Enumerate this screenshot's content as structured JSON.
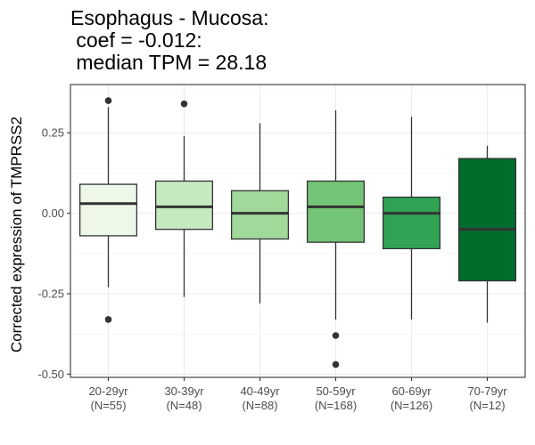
{
  "title_lines": [
    "Esophagus - Mucosa:",
    " coef = -0.012:",
    " median TPM = 28.18"
  ],
  "chart_data": {
    "type": "box",
    "title": "Esophagus - Mucosa:\n coef = -0.012:\n median TPM = 28.18",
    "xlabel": "",
    "ylabel": "Corrected expression of TMPRSS2",
    "ylim": [
      -0.51,
      0.4
    ],
    "yticks": [
      0.25,
      0.0,
      -0.25,
      -0.5
    ],
    "ytick_labels": [
      "0.25",
      "0.00",
      "-0.25",
      "-0.50"
    ],
    "grid": true,
    "categories": [
      {
        "label": "20-29yr",
        "n_label": "(N=55)"
      },
      {
        "label": "30-39yr",
        "n_label": "(N=48)"
      },
      {
        "label": "40-49yr",
        "n_label": "(N=88)"
      },
      {
        "label": "50-59yr",
        "n_label": "(N=168)"
      },
      {
        "label": "60-69yr",
        "n_label": "(N=126)"
      },
      {
        "label": "70-79yr",
        "n_label": "(N=12)"
      }
    ],
    "boxes": [
      {
        "whisker_low": -0.23,
        "q1": -0.07,
        "median": 0.03,
        "q3": 0.09,
        "whisker_high": 0.33,
        "outliers": [
          0.35,
          -0.33
        ],
        "color": "#edf8e9"
      },
      {
        "whisker_low": -0.26,
        "q1": -0.05,
        "median": 0.02,
        "q3": 0.1,
        "whisker_high": 0.24,
        "outliers": [
          0.34
        ],
        "color": "#c7e9c0"
      },
      {
        "whisker_low": -0.28,
        "q1": -0.08,
        "median": 0.0,
        "q3": 0.07,
        "whisker_high": 0.28,
        "outliers": [],
        "color": "#a1d99b"
      },
      {
        "whisker_low": -0.33,
        "q1": -0.09,
        "median": 0.02,
        "q3": 0.1,
        "whisker_high": 0.32,
        "outliers": [
          -0.38,
          -0.47
        ],
        "color": "#74c476"
      },
      {
        "whisker_low": -0.33,
        "q1": -0.11,
        "median": 0.0,
        "q3": 0.05,
        "whisker_high": 0.3,
        "outliers": [],
        "color": "#31a354"
      },
      {
        "whisker_low": -0.34,
        "q1": -0.21,
        "median": -0.05,
        "q3": 0.17,
        "whisker_high": 0.21,
        "outliers": [],
        "color": "#006d2c"
      }
    ]
  }
}
